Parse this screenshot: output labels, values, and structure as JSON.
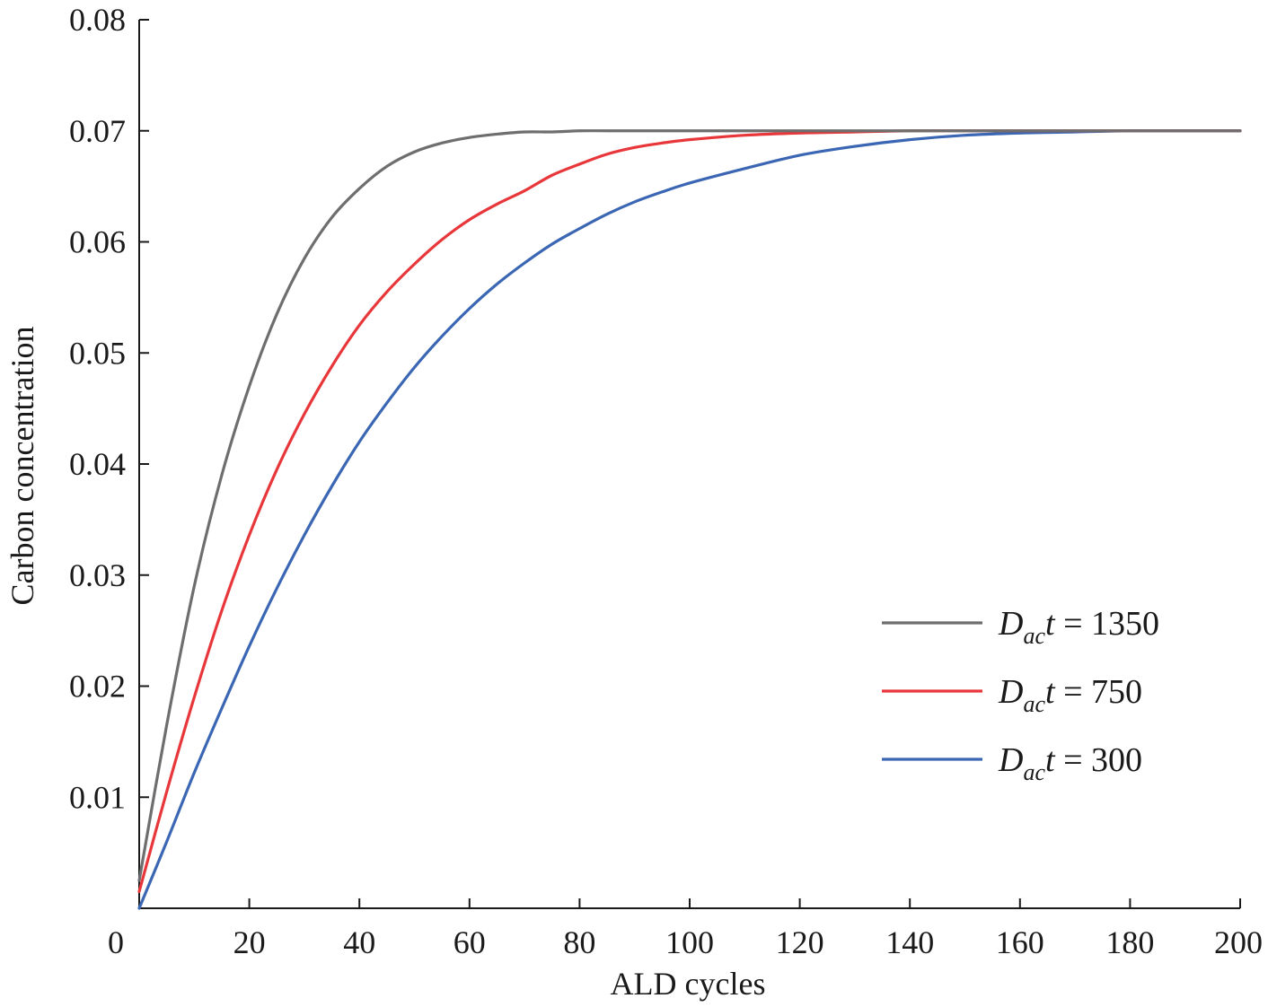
{
  "chart_data": {
    "type": "line",
    "title": "",
    "xlabel": "ALD cycles",
    "ylabel": "Carbon concentration",
    "xlim": [
      0,
      200
    ],
    "ylim": [
      0,
      0.08
    ],
    "x_ticks": [
      0,
      20,
      40,
      60,
      80,
      100,
      120,
      140,
      160,
      180,
      200
    ],
    "x_tick_labels": [
      "0",
      "20",
      "40",
      "60",
      "80",
      "100",
      "120",
      "140",
      "160",
      "180",
      "200"
    ],
    "y_ticks": [
      0.01,
      0.02,
      0.03,
      0.04,
      0.05,
      0.06,
      0.07,
      0.08
    ],
    "y_tick_labels": [
      "0.01",
      "0.02",
      "0.03",
      "0.04",
      "0.05",
      "0.06",
      "0.07",
      "0.08"
    ],
    "grid": false,
    "legend_position": "right",
    "x": [
      0,
      5,
      10,
      15,
      20,
      25,
      30,
      35,
      40,
      45,
      50,
      55,
      60,
      65,
      70,
      75,
      80,
      85,
      90,
      95,
      100,
      110,
      120,
      130,
      140,
      150,
      160,
      170,
      180,
      190,
      200
    ],
    "series": [
      {
        "label_main": "D",
        "label_sub": "ac",
        "label_var": "t",
        "label_value": " = 1350",
        "color": "#6e6e6e",
        "values": [
          0.0025,
          0.0165,
          0.029,
          0.039,
          0.047,
          0.0535,
          0.0585,
          0.0622,
          0.0648,
          0.0668,
          0.0681,
          0.0689,
          0.0694,
          0.0697,
          0.0699,
          0.0699,
          0.07,
          0.07,
          0.07,
          0.07,
          0.07,
          0.07,
          0.07,
          0.07,
          0.07,
          0.07,
          0.07,
          0.07,
          0.07,
          0.07,
          0.07
        ]
      },
      {
        "label_main": "D",
        "label_sub": "ac",
        "label_var": "t",
        "label_value": " = 750",
        "color": "#e8373a",
        "values": [
          0.0015,
          0.0105,
          0.019,
          0.0268,
          0.0336,
          0.0395,
          0.0445,
          0.0488,
          0.0525,
          0.0555,
          0.058,
          0.0602,
          0.062,
          0.0634,
          0.0646,
          0.066,
          0.067,
          0.0679,
          0.0685,
          0.0689,
          0.0692,
          0.0696,
          0.0698,
          0.0699,
          0.07,
          0.07,
          0.07,
          0.07,
          0.07,
          0.07,
          0.07
        ]
      },
      {
        "label_main": "D",
        "label_sub": "ac",
        "label_var": "t",
        "label_value": " = 300",
        "color": "#3a66b3",
        "values": [
          0.0,
          0.006,
          0.0122,
          0.018,
          0.0236,
          0.0288,
          0.0336,
          0.038,
          0.042,
          0.0455,
          0.0487,
          0.0515,
          0.054,
          0.0562,
          0.0581,
          0.0598,
          0.0612,
          0.0625,
          0.0636,
          0.0645,
          0.0653,
          0.0666,
          0.0678,
          0.0686,
          0.0692,
          0.0696,
          0.0698,
          0.0699,
          0.07,
          0.07,
          0.07
        ]
      }
    ]
  }
}
